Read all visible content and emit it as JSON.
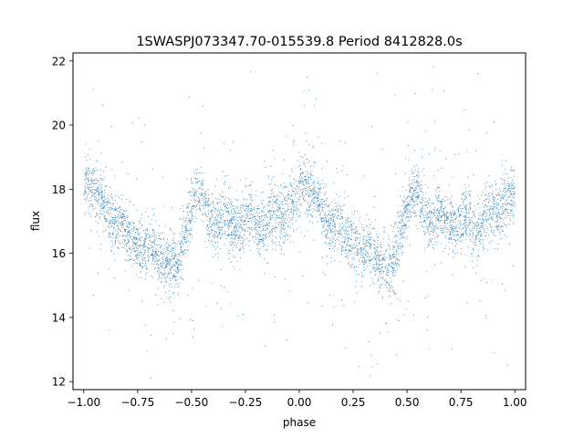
{
  "chart_data": {
    "type": "scatter",
    "title": "1SWASPJ073347.70-015539.8 Period 8412828.0s",
    "xlabel": "phase",
    "ylabel": "flux",
    "xlim": [
      -1.05,
      1.05
    ],
    "ylim": [
      11.75,
      22.25
    ],
    "xticks": [
      -1.0,
      -0.75,
      -0.5,
      -0.25,
      0.0,
      0.25,
      0.5,
      0.75,
      1.0
    ],
    "xtick_labels": [
      "−1.00",
      "−0.75",
      "−0.50",
      "−0.25",
      "0.00",
      "0.25",
      "0.50",
      "0.75",
      "1.00"
    ],
    "yticks": [
      12,
      14,
      16,
      18,
      20,
      22
    ],
    "ytick_labels": [
      "12",
      "14",
      "16",
      "18",
      "20",
      "22"
    ],
    "grid": false,
    "marker_color": "#1f77b4",
    "series": [
      {
        "phase_profile": [
          [
            0.0,
            18.1
          ],
          [
            0.02,
            18.3
          ],
          [
            0.05,
            18.0
          ],
          [
            0.08,
            17.8
          ],
          [
            0.1,
            17.5
          ],
          [
            0.12,
            17.1
          ],
          [
            0.15,
            16.8
          ],
          [
            0.18,
            16.9
          ],
          [
            0.2,
            16.7
          ],
          [
            0.22,
            16.5
          ],
          [
            0.25,
            16.3
          ],
          [
            0.28,
            16.1
          ],
          [
            0.3,
            16.2
          ],
          [
            0.33,
            16.1
          ],
          [
            0.36,
            15.8
          ],
          [
            0.4,
            15.6
          ],
          [
            0.43,
            15.6
          ],
          [
            0.46,
            16.3
          ],
          [
            0.48,
            16.8
          ],
          [
            0.5,
            17.4
          ],
          [
            0.52,
            17.8
          ],
          [
            0.55,
            18.0
          ],
          [
            0.58,
            17.1
          ],
          [
            0.62,
            16.9
          ],
          [
            0.65,
            17.2
          ],
          [
            0.68,
            17.0
          ],
          [
            0.72,
            16.8
          ],
          [
            0.75,
            16.9
          ],
          [
            0.78,
            17.3
          ],
          [
            0.81,
            16.6
          ],
          [
            0.84,
            16.9
          ],
          [
            0.88,
            17.3
          ],
          [
            0.92,
            17.2
          ],
          [
            0.96,
            17.5
          ],
          [
            0.98,
            17.8
          ],
          [
            1.0,
            18.1
          ]
        ]
      }
    ]
  }
}
